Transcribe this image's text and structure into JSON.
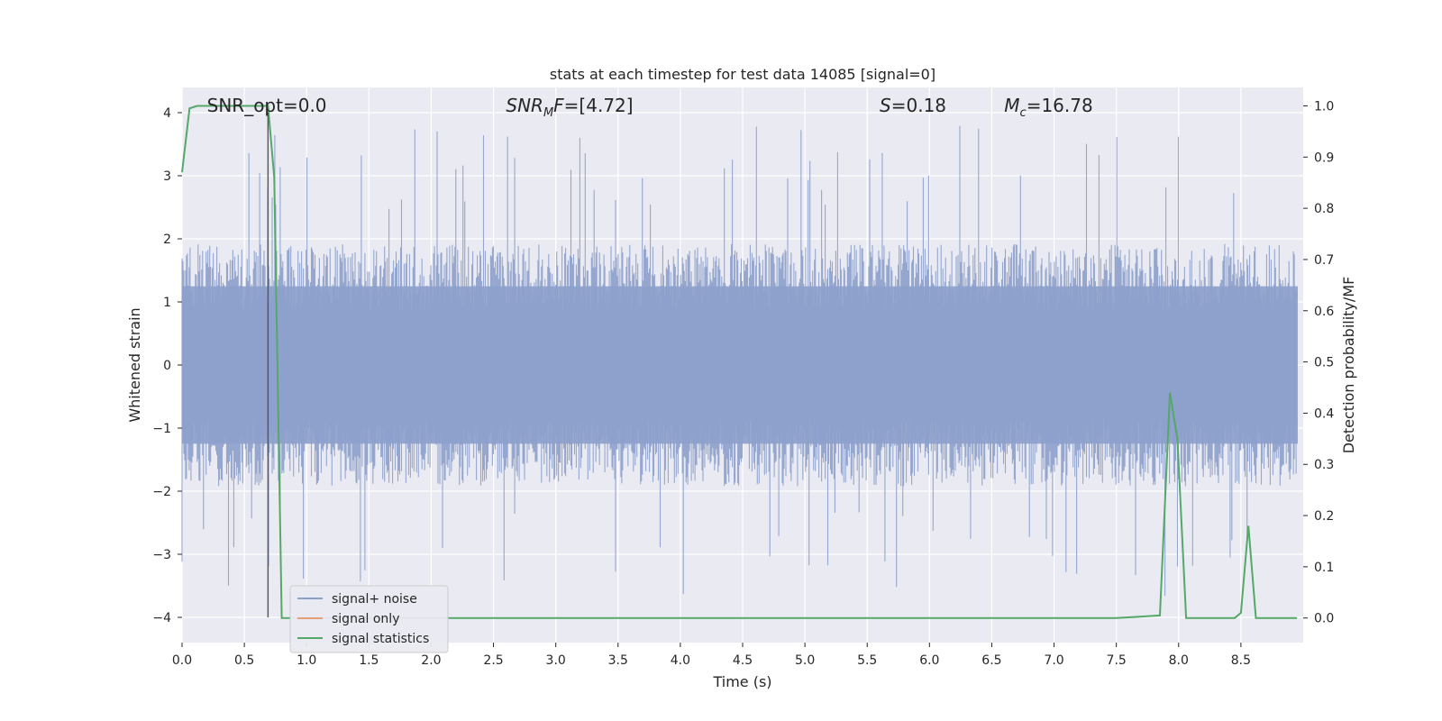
{
  "chart_data": {
    "type": "line",
    "title": "stats at each timestep for test data 14085 [signal=0]",
    "xlabel": "Time (s)",
    "ylabel": "Whitened strain",
    "y2label": "Detection probability/MF",
    "xlim": [
      0.0,
      9.0
    ],
    "ylim": [
      -4.4,
      4.4
    ],
    "y2lim": [
      -0.048,
      1.036
    ],
    "xticks": [
      0.0,
      0.5,
      1.0,
      1.5,
      2.0,
      2.5,
      3.0,
      3.5,
      4.0,
      4.5,
      5.0,
      5.5,
      6.0,
      6.5,
      7.0,
      7.5,
      8.0,
      8.5
    ],
    "xtick_labels": [
      "0.0",
      "0.5",
      "1.0",
      "1.5",
      "2.0",
      "2.5",
      "3.0",
      "3.5",
      "4.0",
      "4.5",
      "5.0",
      "5.5",
      "6.0",
      "6.5",
      "7.0",
      "7.5",
      "8.0",
      "8.5"
    ],
    "yticks": [
      4,
      3,
      2,
      1,
      0,
      -1,
      -2,
      -3,
      -4
    ],
    "ytick_labels": [
      "4",
      "3",
      "2",
      "1",
      "0",
      "−1",
      "−2",
      "−3",
      "−4"
    ],
    "y2ticks": [
      1.0,
      0.9,
      0.8,
      0.7,
      0.6,
      0.5,
      0.4,
      0.3,
      0.2,
      0.1,
      0.0
    ],
    "y2tick_labels": [
      "1.0",
      "0.9",
      "0.8",
      "0.7",
      "0.6",
      "0.5",
      "0.4",
      "0.3",
      "0.2",
      "0.1",
      "0.0"
    ],
    "grid": true,
    "legend_position": "lower-left",
    "annotations": [
      {
        "key": "snr_opt",
        "prefix": "SNR_opt=0.0",
        "sub": "",
        "suffix": "",
        "x": 0.2
      },
      {
        "key": "snr_mf",
        "prefix": "SNR",
        "sub": "M",
        "suffix": "F=[4.72]",
        "x": 2.6
      },
      {
        "key": "s",
        "prefix": "S",
        "sub": "",
        "suffix": "=0.18",
        "x": 5.6
      },
      {
        "key": "mc",
        "prefix": "M",
        "sub": "c",
        "suffix": "=16.78",
        "x": 6.6
      }
    ],
    "vline_x": 0.69,
    "series": [
      {
        "name": "signal+ noise",
        "color": "#8da0cb",
        "kind": "noise",
        "envelope": {
          "typical_upper": 1.6,
          "typical_lower": -1.6,
          "peak_upper": 4.0,
          "peak_lower": -4.0
        }
      },
      {
        "name": "signal only",
        "color": "#e5a07a",
        "kind": "signal",
        "x": [
          0.0,
          9.0
        ],
        "y": [
          0.0,
          0.0
        ]
      },
      {
        "name": "signal statistics",
        "color": "#55a868",
        "kind": "stat",
        "x": [
          0.0,
          0.06,
          0.12,
          0.2,
          0.3,
          0.4,
          0.5,
          0.6,
          0.69,
          0.74,
          0.8,
          1.0,
          2.0,
          3.0,
          4.0,
          5.0,
          6.0,
          7.0,
          7.5,
          7.85,
          7.93,
          7.99,
          8.06,
          8.15,
          8.3,
          8.45,
          8.5,
          8.56,
          8.62,
          8.7,
          8.8,
          8.9,
          8.95
        ],
        "y": [
          0.87,
          0.995,
          1.0,
          1.0,
          1.0,
          1.0,
          1.0,
          1.0,
          1.0,
          0.86,
          0.0,
          0.0,
          0.0,
          0.0,
          0.0,
          0.0,
          0.0,
          0.0,
          0.0,
          0.005,
          0.44,
          0.35,
          0.0,
          0.0,
          0.0,
          0.0,
          0.01,
          0.18,
          0.0,
          0.0,
          0.0,
          0.0,
          0.0
        ]
      }
    ]
  }
}
